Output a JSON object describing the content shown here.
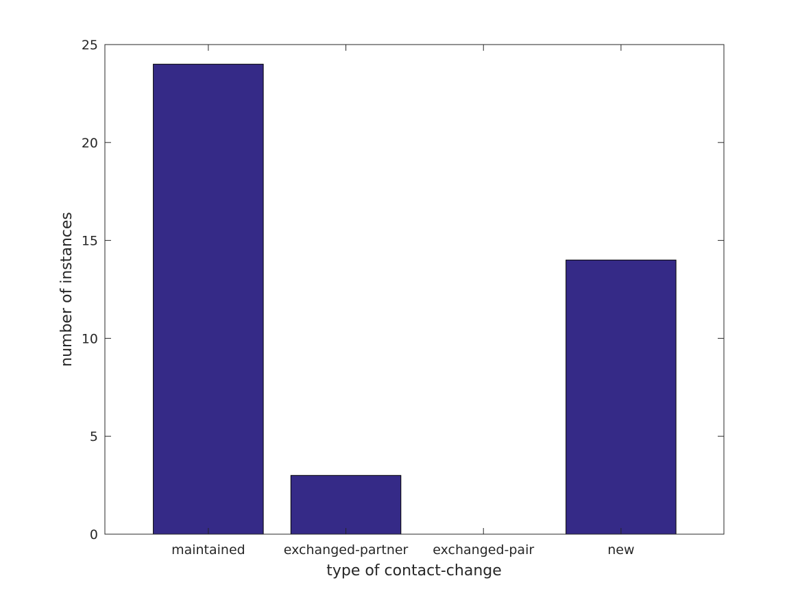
{
  "chart_data": {
    "type": "bar",
    "categories": [
      "maintained",
      "exchanged-partner",
      "exchanged-pair",
      "new"
    ],
    "values": [
      24,
      3,
      0,
      14
    ],
    "xlabel": "type of contact-change",
    "ylabel": "number of instances",
    "ylim": [
      0,
      25
    ],
    "yticks": [
      0,
      5,
      10,
      15,
      20,
      25
    ],
    "bar_color": "#352a87",
    "grid": false,
    "box": true
  }
}
